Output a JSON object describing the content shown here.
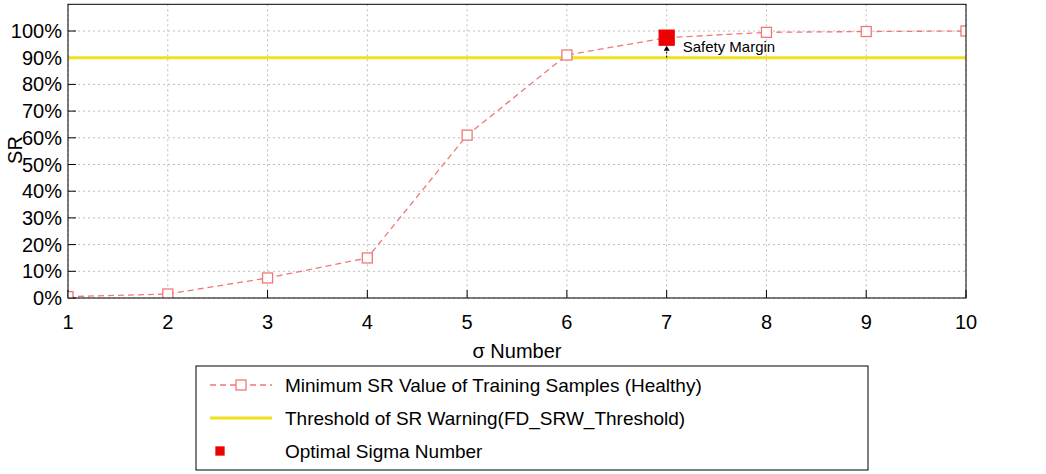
{
  "chart_data": {
    "type": "line",
    "x_label": "σ Number",
    "y_label": "SR",
    "x": [
      1,
      2,
      3,
      4,
      5,
      6,
      7,
      8,
      9,
      10
    ],
    "xlim": [
      1,
      10
    ],
    "xticks": [
      1,
      2,
      3,
      4,
      5,
      6,
      7,
      8,
      9,
      10
    ],
    "ylim": [
      0,
      110
    ],
    "yticks": [
      {
        "value": 0,
        "label": "0%"
      },
      {
        "value": 10,
        "label": "10%"
      },
      {
        "value": 20,
        "label": "20%"
      },
      {
        "value": 30,
        "label": "30%"
      },
      {
        "value": 40,
        "label": "40%"
      },
      {
        "value": 50,
        "label": "50%"
      },
      {
        "value": 60,
        "label": "60%"
      },
      {
        "value": 70,
        "label": "70%"
      },
      {
        "value": 80,
        "label": "80%"
      },
      {
        "value": 90,
        "label": "90%"
      },
      {
        "value": 100,
        "label": "100%"
      }
    ],
    "grid": true,
    "legend": "bottom",
    "series": [
      {
        "name": "Minimum SR Value of Training Samples (Healthy)",
        "type": "line",
        "color": "#f07878",
        "marker": "square",
        "line_style": "dashed",
        "values": [
          0.5,
          1.5,
          7.5,
          15,
          61,
          91,
          97.5,
          99.5,
          99.8,
          100
        ]
      },
      {
        "name": "Threshold of SR Warning(FD_SRW_Threshold)",
        "type": "line",
        "color": "#f2e01c",
        "marker": "none",
        "line_style": "solid",
        "values": [
          90,
          90,
          90,
          90,
          90,
          90,
          90,
          90,
          90,
          90
        ]
      },
      {
        "name": "Optimal Sigma Number",
        "type": "scatter",
        "color": "#ee0000",
        "marker": "square",
        "x": [
          7
        ],
        "values": [
          97.5
        ]
      }
    ],
    "annotations": [
      {
        "text": "Safety Margin",
        "x": 7,
        "from": 90,
        "to": 97.5
      }
    ]
  }
}
